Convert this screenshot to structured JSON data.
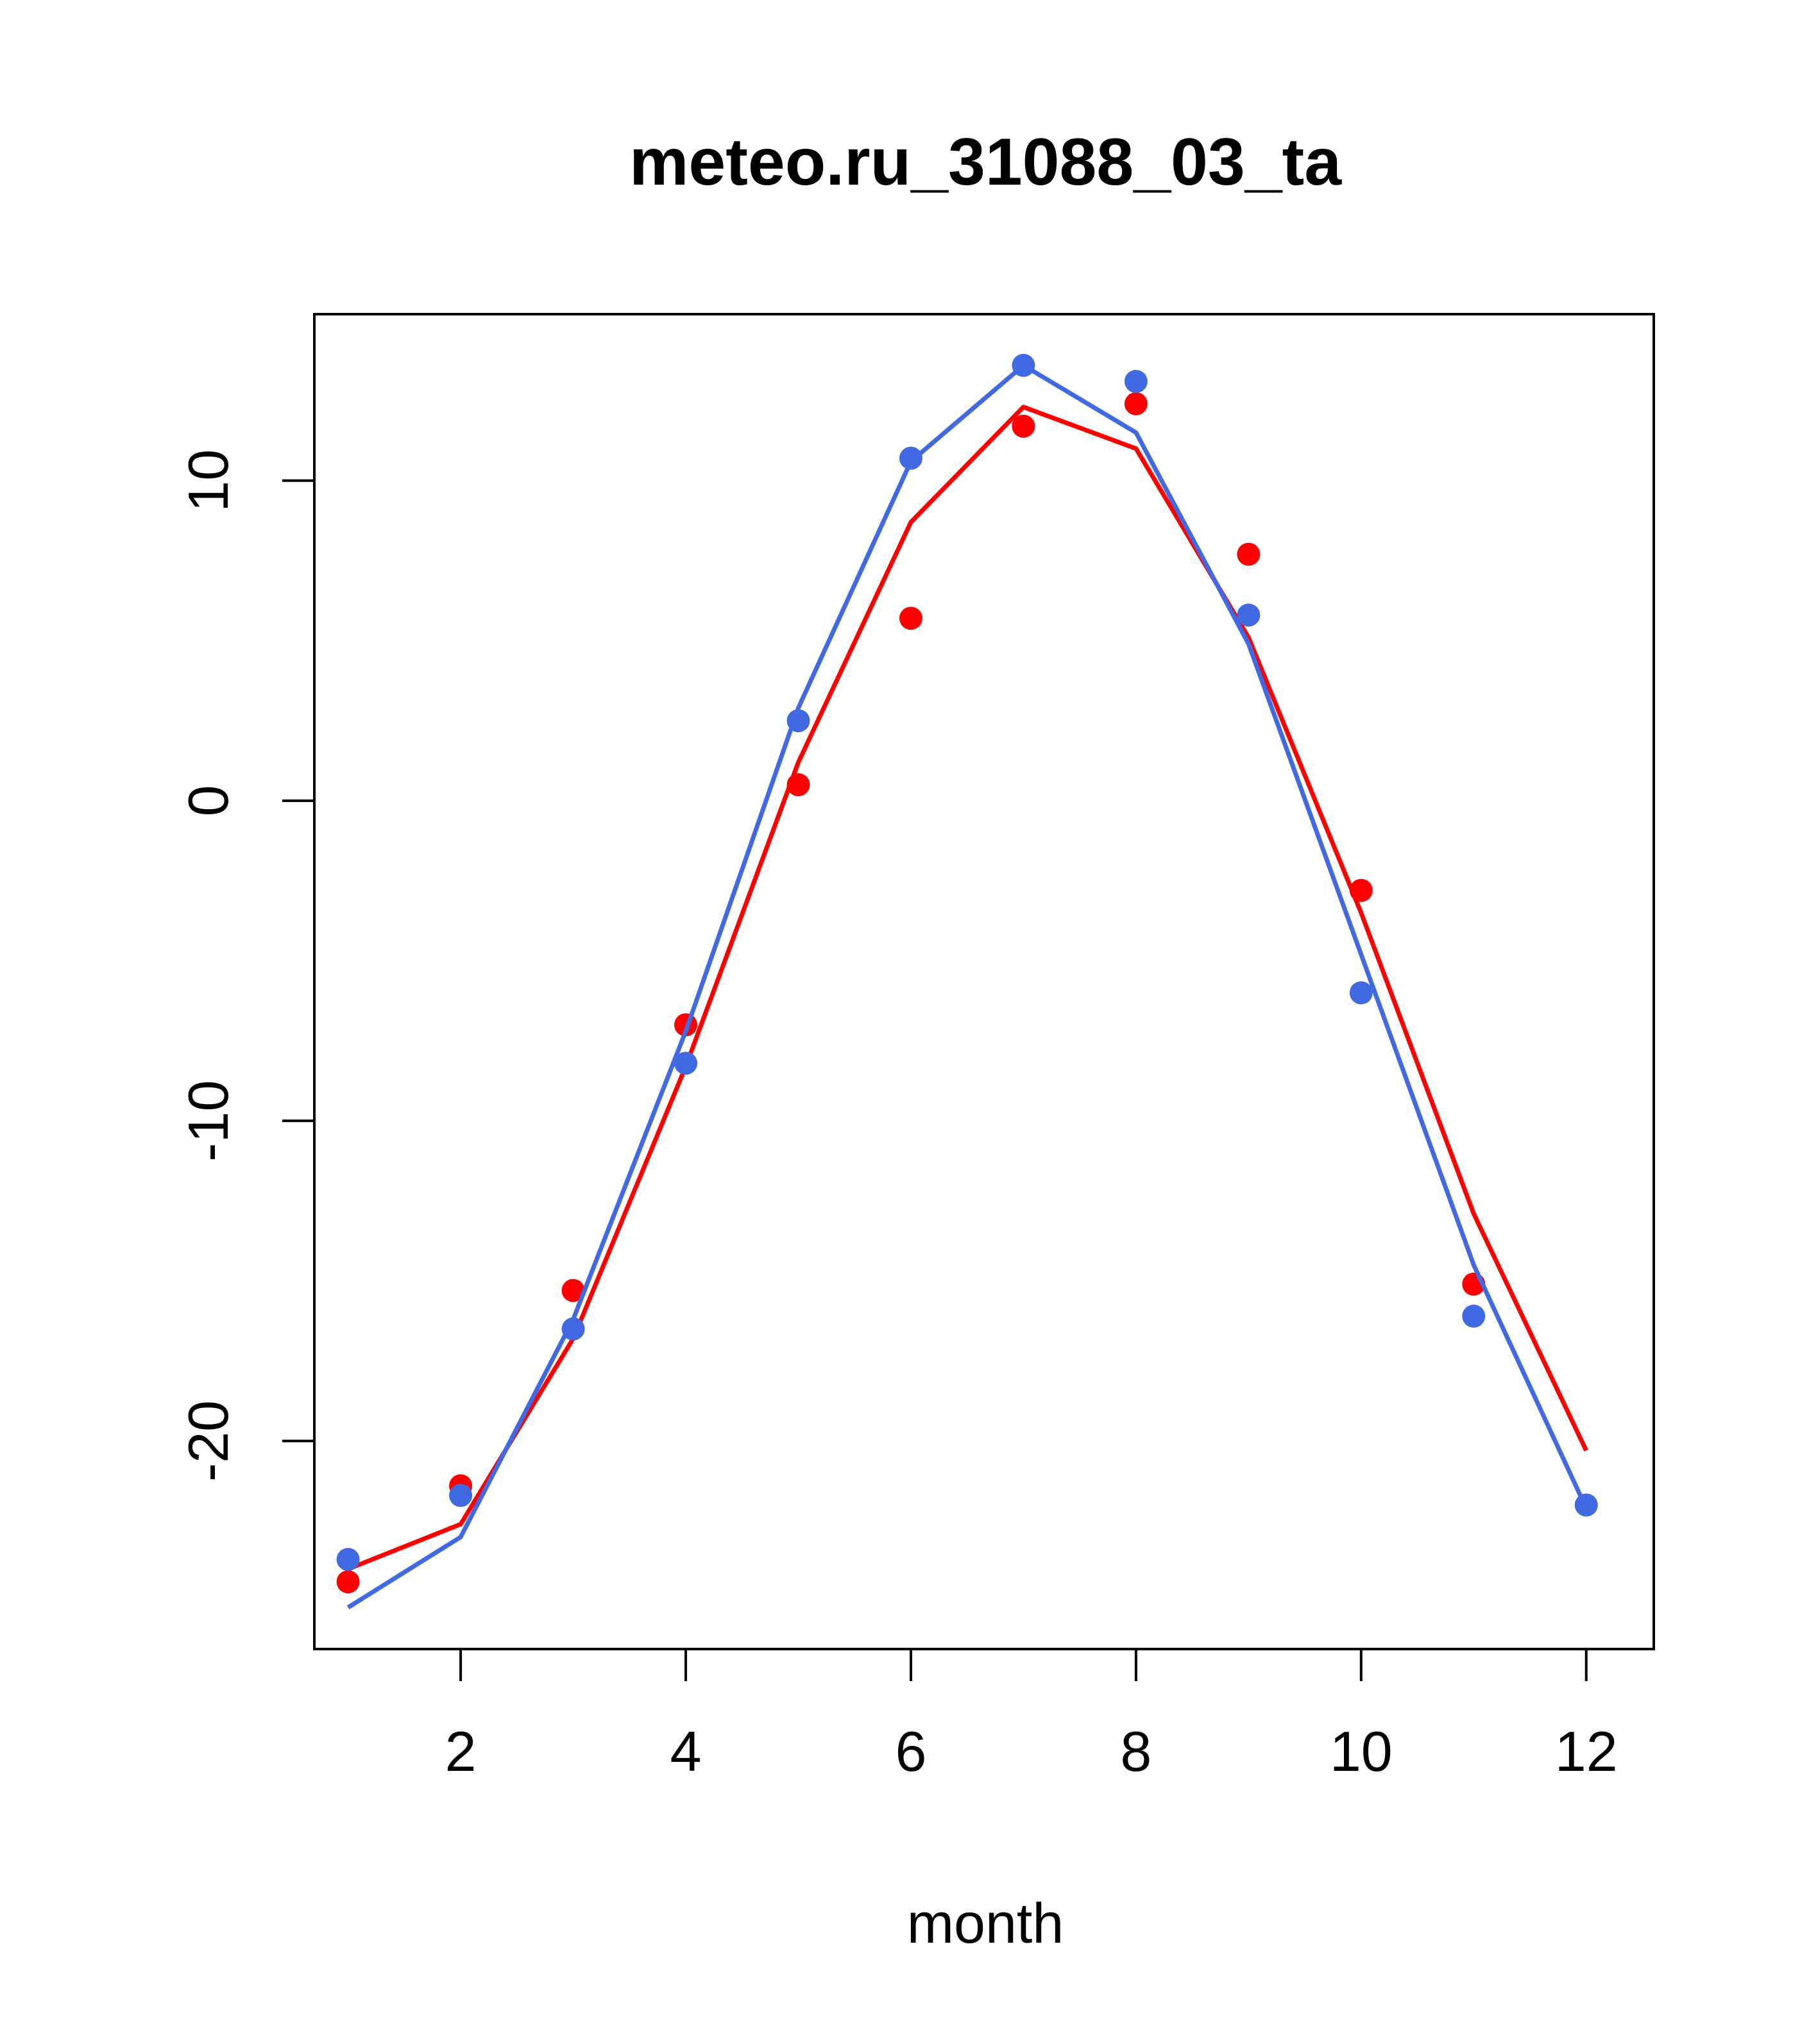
{
  "chart_data": {
    "type": "line",
    "title": "meteo.ru_31088_03_ta",
    "xlabel": "month",
    "ylabel": "",
    "xlim": [
      0.7,
      12.6
    ],
    "ylim": [
      -26.5,
      15.2
    ],
    "x_ticks": [
      2,
      4,
      6,
      8,
      10,
      12
    ],
    "x_tick_labels": [
      "2",
      "4",
      "6",
      "8",
      "10",
      "12"
    ],
    "y_ticks": [
      -20,
      -10,
      0,
      10
    ],
    "y_tick_labels": [
      "-20",
      "-10",
      "0",
      "10"
    ],
    "grid": false,
    "legend": "none",
    "x": [
      1,
      2,
      3,
      4,
      5,
      6,
      7,
      8,
      9,
      10,
      11,
      12
    ],
    "series": [
      {
        "color": "#ff0000",
        "points": [
          -24.4,
          -21.4,
          -15.3,
          -7.0,
          0.5,
          5.7,
          11.7,
          12.4,
          7.7,
          -2.8,
          -15.1,
          null
        ],
        "line": [
          -24.0,
          -22.6,
          -16.8,
          -8.3,
          1.2,
          8.7,
          12.3,
          11.0,
          5.1,
          -3.5,
          -12.9,
          -20.3
        ]
      },
      {
        "color": "#4169e1",
        "points": [
          -23.7,
          -21.7,
          -16.5,
          -8.2,
          2.5,
          10.7,
          13.6,
          13.1,
          5.8,
          -6.0,
          -16.1,
          -22.0
        ],
        "line": [
          -25.2,
          -23.0,
          -16.2,
          -7.2,
          2.9,
          10.6,
          13.6,
          11.5,
          4.9,
          -4.8,
          -14.5,
          -22.1
        ]
      }
    ]
  }
}
